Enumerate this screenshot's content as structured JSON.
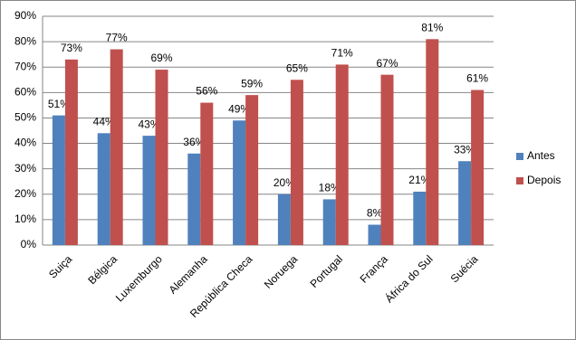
{
  "chart_data": {
    "type": "bar",
    "categories": [
      "Suiça",
      "Bélgica",
      "Luxemburgo",
      "Alemanha",
      "República Checa",
      "Noruega",
      "Portugal",
      "França",
      "África do Sul",
      "Suécia"
    ],
    "series": [
      {
        "name": "Antes",
        "color": "#4f81bd",
        "values": [
          51,
          44,
          43,
          36,
          49,
          20,
          18,
          8,
          21,
          33
        ],
        "value_labels": [
          "51%",
          "44%",
          "43%",
          "36%",
          "49%",
          "20%",
          "18%",
          "8%",
          "21%",
          "33%"
        ]
      },
      {
        "name": "Depois",
        "color": "#c0504d",
        "values": [
          73,
          77,
          69,
          56,
          59,
          65,
          71,
          67,
          81,
          61
        ],
        "value_labels": [
          "73%",
          "77%",
          "69%",
          "56%",
          "59%",
          "65%",
          "71%",
          "67%",
          "81%",
          "61%"
        ]
      }
    ],
    "ylim": [
      0,
      90
    ],
    "yticks": [
      {
        "value": 0,
        "label": "0%"
      },
      {
        "value": 10,
        "label": "10%"
      },
      {
        "value": 20,
        "label": "20%"
      },
      {
        "value": 30,
        "label": "30%"
      },
      {
        "value": 40,
        "label": "40%"
      },
      {
        "value": 50,
        "label": "50%"
      },
      {
        "value": 60,
        "label": "60%"
      },
      {
        "value": 70,
        "label": "70%"
      },
      {
        "value": 80,
        "label": "80%"
      },
      {
        "value": 90,
        "label": "90%"
      }
    ],
    "grid": true,
    "legend": "right"
  }
}
